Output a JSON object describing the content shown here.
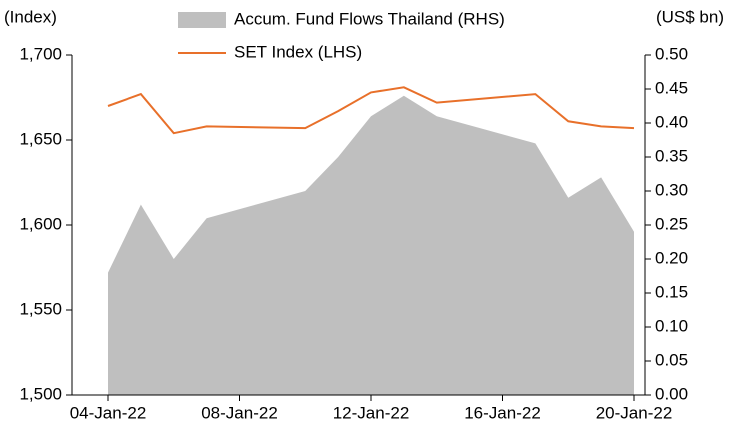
{
  "chart_data": {
    "type": "line_area",
    "y_label": "(Index)",
    "y2_label": "(US$ bn)",
    "x": [
      "04-Jan-22",
      "05-Jan-22",
      "06-Jan-22",
      "07-Jan-22",
      "10-Jan-22",
      "11-Jan-22",
      "12-Jan-22",
      "13-Jan-22",
      "14-Jan-22",
      "17-Jan-22",
      "18-Jan-22",
      "19-Jan-22",
      "20-Jan-22"
    ],
    "series": [
      {
        "name": "Accum. Fund Flows Thailand (RHS)",
        "type": "area",
        "axis": "y2",
        "color": "#bfbfbf",
        "values": [
          0.18,
          0.28,
          0.2,
          0.26,
          0.3,
          0.35,
          0.41,
          0.44,
          0.41,
          0.37,
          0.29,
          0.32,
          0.24
        ]
      },
      {
        "name": "SET Index (LHS)",
        "type": "line",
        "axis": "y",
        "color": "#e8702a",
        "values": [
          1670,
          1677,
          1654,
          1658,
          1657,
          1667,
          1678,
          1681,
          1672,
          1677,
          1661,
          1658,
          1657
        ]
      }
    ],
    "xlim": [
      "04-Jan-22",
      "20-Jan-22"
    ],
    "xticks": [
      "04-Jan-22",
      "08-Jan-22",
      "12-Jan-22",
      "16-Jan-22",
      "20-Jan-22"
    ],
    "ylim": [
      1500,
      1700
    ],
    "yticks": [
      {
        "value": 1500,
        "label": "1,500"
      },
      {
        "value": 1550,
        "label": "1,550"
      },
      {
        "value": 1600,
        "label": "1,600"
      },
      {
        "value": 1650,
        "label": "1,650"
      },
      {
        "value": 1700,
        "label": "1,700"
      }
    ],
    "y2lim": [
      0,
      0.5
    ],
    "y2ticks": [
      {
        "value": 0,
        "label": "0.00"
      },
      0.05,
      {
        "value": 0.1,
        "label": "0.10"
      },
      0.15,
      {
        "value": 0.2,
        "label": "0.20"
      },
      0.25,
      {
        "value": 0.3,
        "label": "0.30"
      },
      0.35,
      {
        "value": 0.4,
        "label": "0.40"
      },
      0.45,
      {
        "value": 0.5,
        "label": "0.50"
      }
    ]
  }
}
